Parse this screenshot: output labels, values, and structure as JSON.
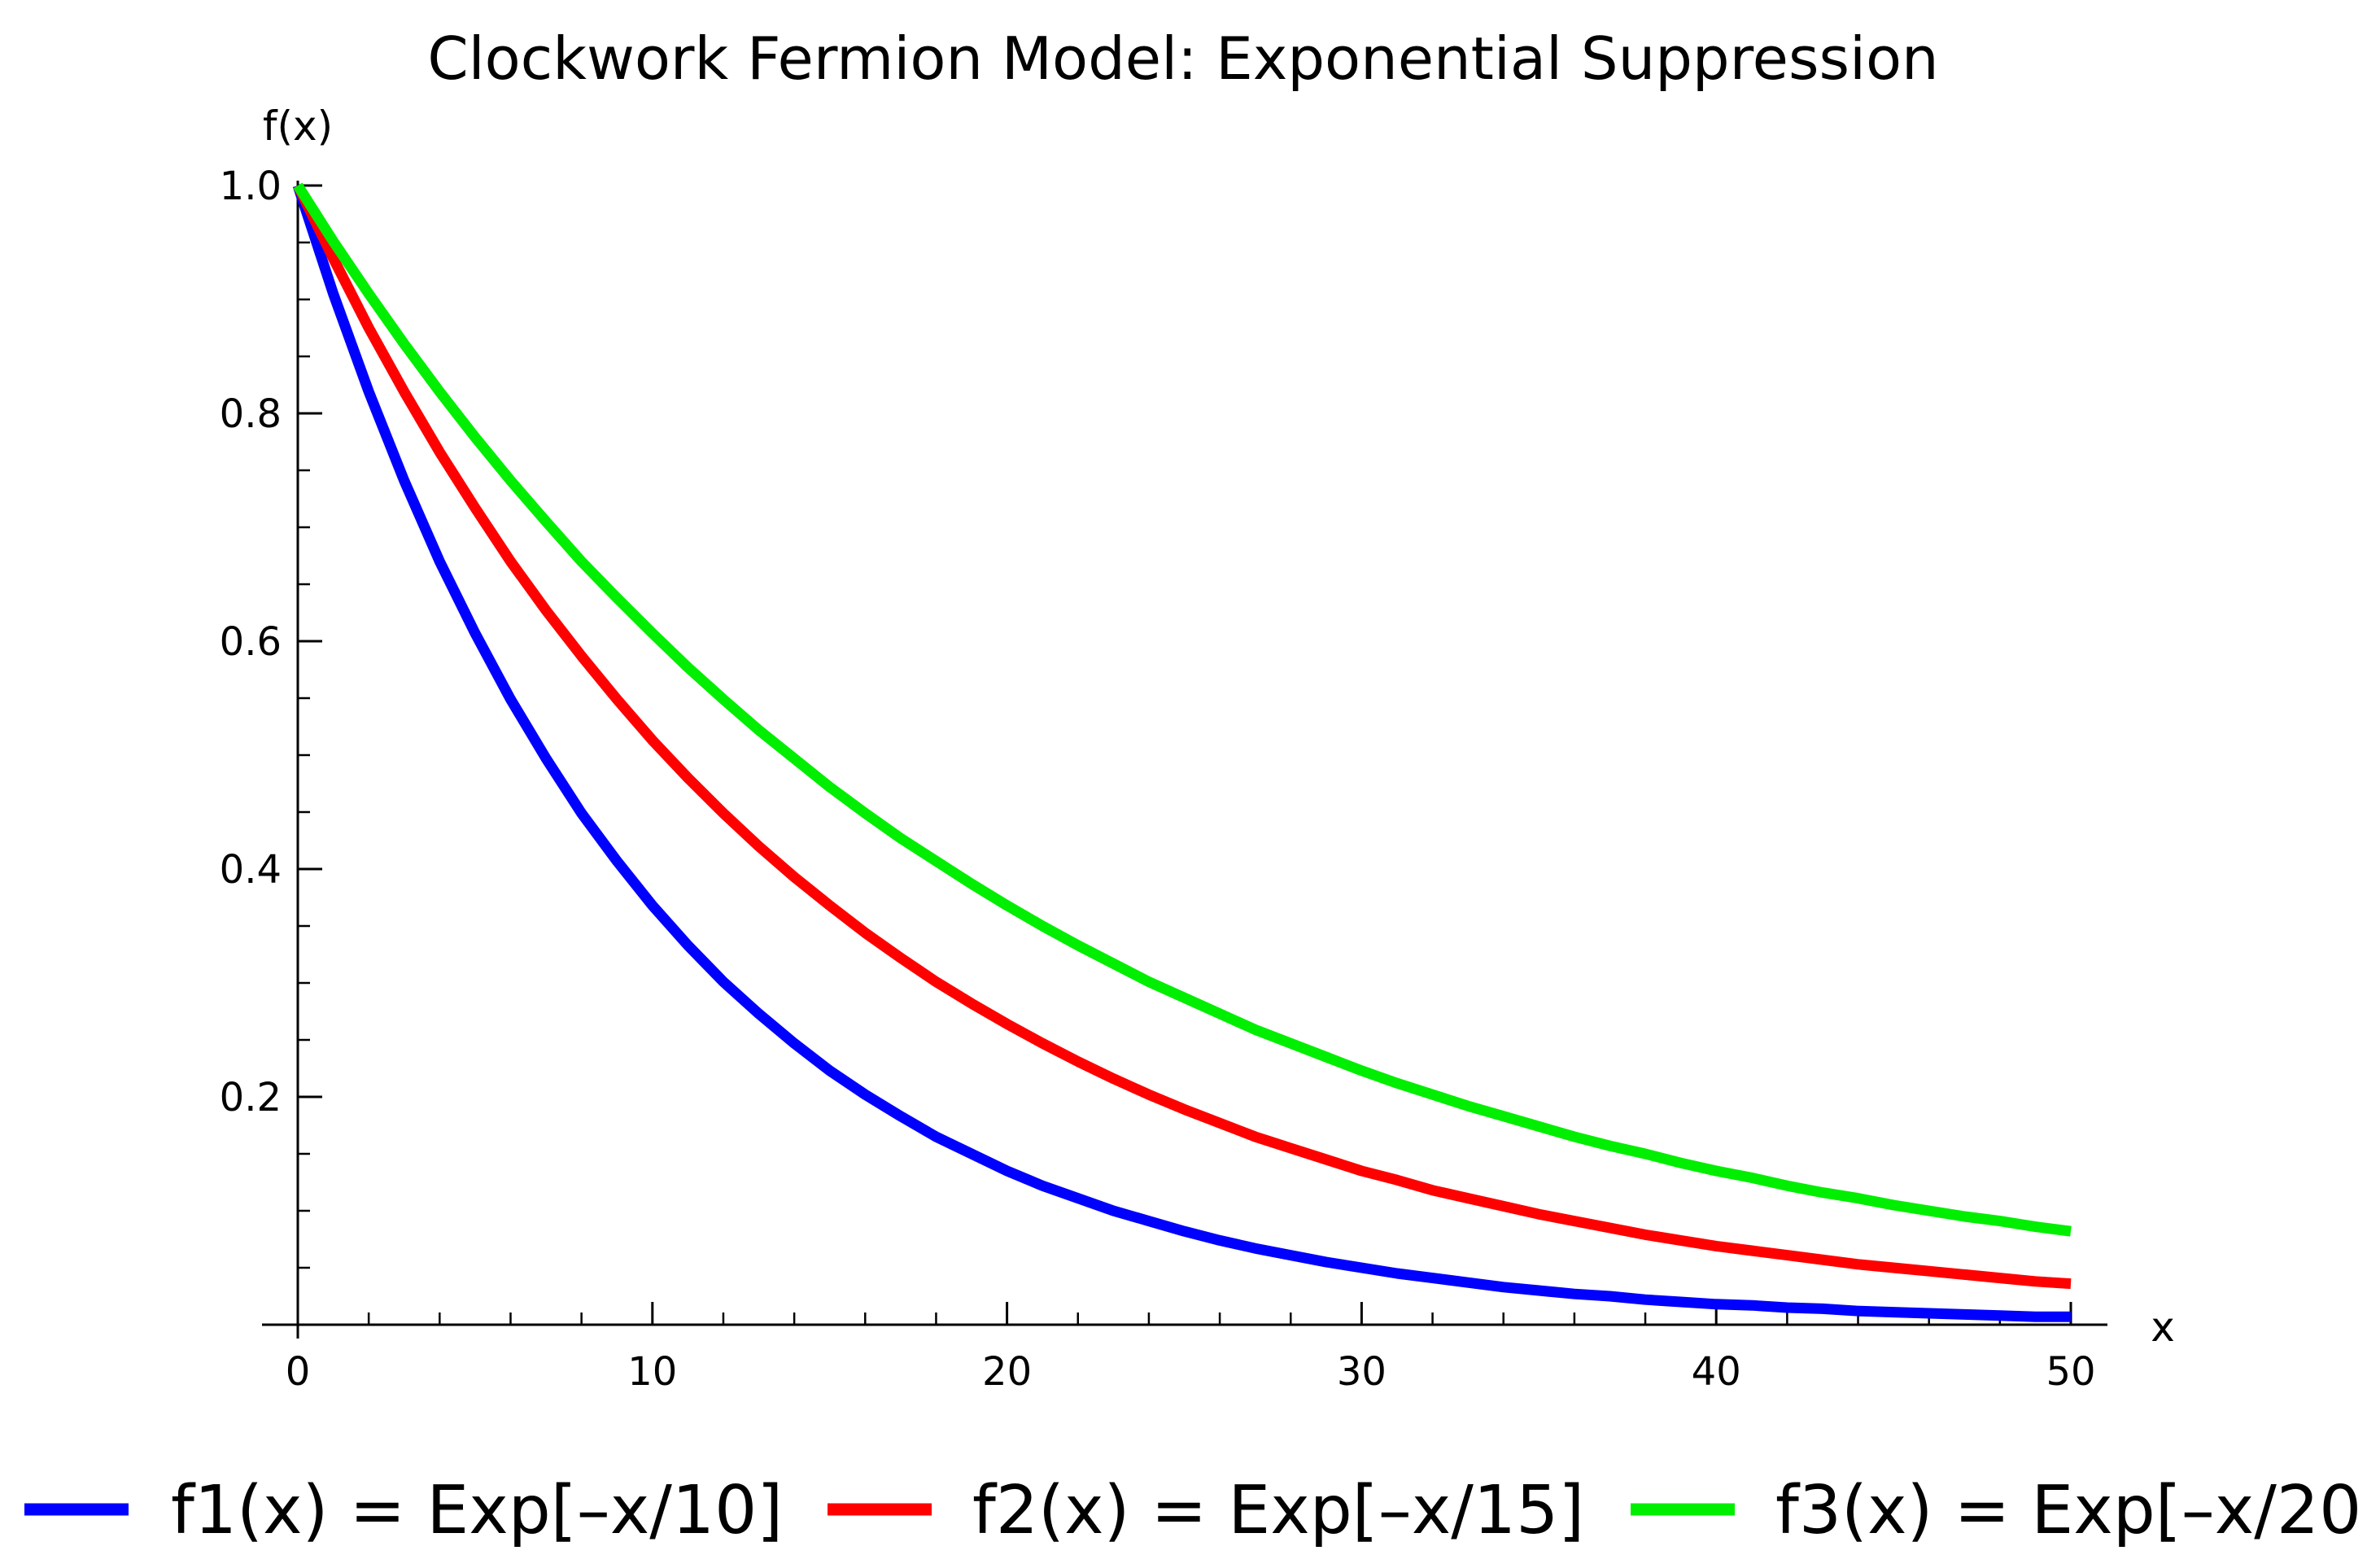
{
  "chart_data": {
    "type": "line",
    "title": "Clockwork Fermion Model: Exponential Suppression",
    "xlabel": "x",
    "ylabel": "f(x)",
    "xlim": [
      0,
      50
    ],
    "ylim": [
      0,
      1.0
    ],
    "x_ticks": [
      0,
      10,
      20,
      30,
      40,
      50
    ],
    "x_tick_labels": [
      "0",
      "10",
      "20",
      "30",
      "40",
      "50"
    ],
    "y_ticks": [
      0.2,
      0.4,
      0.6,
      0.8,
      1.0
    ],
    "y_tick_labels": [
      "0.2",
      "0.4",
      "0.6",
      "0.8",
      "1.0"
    ],
    "x_minor_step": 2,
    "y_minor_step": 0.05,
    "grid": false,
    "legend_position": "bottom",
    "x": [
      0,
      1,
      2,
      3,
      4,
      5,
      6,
      7,
      8,
      9,
      10,
      11,
      12,
      13,
      14,
      15,
      16,
      17,
      18,
      19,
      20,
      21,
      22,
      23,
      24,
      25,
      26,
      27,
      28,
      29,
      30,
      31,
      32,
      33,
      34,
      35,
      36,
      37,
      38,
      39,
      40,
      41,
      42,
      43,
      44,
      45,
      46,
      47,
      48,
      49,
      50
    ],
    "series": [
      {
        "name": "f1(x) = Exp[–x/10]",
        "color": "#0000ff",
        "values": [
          1.0,
          0.905,
          0.819,
          0.741,
          0.67,
          0.607,
          0.549,
          0.497,
          0.449,
          0.407,
          0.368,
          0.333,
          0.301,
          0.273,
          0.247,
          0.223,
          0.202,
          0.183,
          0.165,
          0.15,
          0.135,
          0.122,
          0.111,
          0.1,
          0.091,
          0.082,
          0.074,
          0.067,
          0.061,
          0.055,
          0.05,
          0.045,
          0.041,
          0.037,
          0.033,
          0.03,
          0.027,
          0.025,
          0.022,
          0.02,
          0.018,
          0.017,
          0.015,
          0.014,
          0.012,
          0.011,
          0.01,
          0.009,
          0.008,
          0.007,
          0.007
        ]
      },
      {
        "name": "f2(x) = Exp[–x/15]",
        "color": "#ff0000",
        "values": [
          1.0,
          0.936,
          0.875,
          0.819,
          0.766,
          0.717,
          0.67,
          0.627,
          0.587,
          0.549,
          0.513,
          0.48,
          0.449,
          0.42,
          0.393,
          0.368,
          0.344,
          0.322,
          0.301,
          0.282,
          0.264,
          0.247,
          0.231,
          0.216,
          0.202,
          0.189,
          0.177,
          0.165,
          0.155,
          0.145,
          0.135,
          0.127,
          0.118,
          0.111,
          0.104,
          0.097,
          0.091,
          0.085,
          0.079,
          0.074,
          0.069,
          0.065,
          0.061,
          0.057,
          0.053,
          0.05,
          0.047,
          0.044,
          0.041,
          0.038,
          0.036
        ]
      },
      {
        "name": "f3(x) = Exp[–x/20]",
        "color": "#00ee00",
        "values": [
          1.0,
          0.951,
          0.905,
          0.861,
          0.819,
          0.779,
          0.741,
          0.705,
          0.67,
          0.638,
          0.607,
          0.577,
          0.549,
          0.522,
          0.497,
          0.472,
          0.449,
          0.427,
          0.407,
          0.387,
          0.368,
          0.35,
          0.333,
          0.317,
          0.301,
          0.287,
          0.273,
          0.259,
          0.247,
          0.235,
          0.223,
          0.212,
          0.202,
          0.192,
          0.183,
          0.174,
          0.165,
          0.157,
          0.15,
          0.142,
          0.135,
          0.129,
          0.122,
          0.116,
          0.111,
          0.105,
          0.1,
          0.095,
          0.091,
          0.086,
          0.082
        ]
      }
    ]
  }
}
